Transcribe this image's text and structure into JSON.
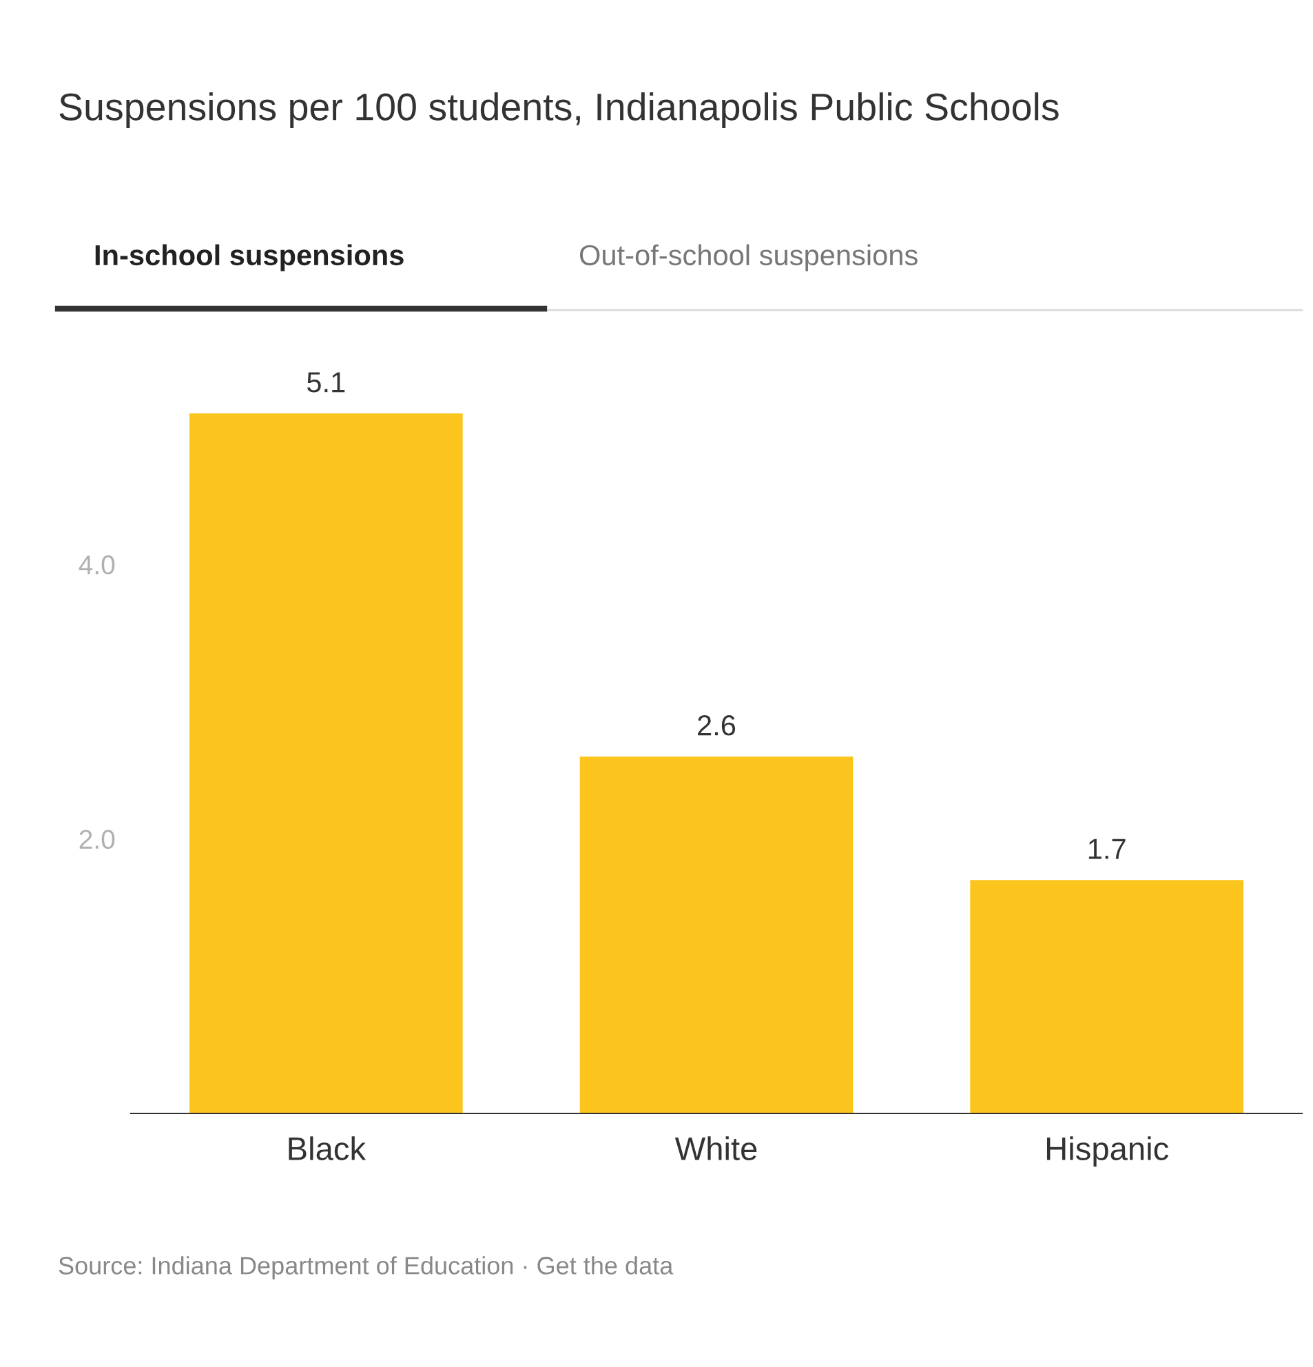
{
  "chart_data": {
    "type": "bar",
    "title": "Suspensions per 100 students, Indianapolis Public Schools",
    "categories": [
      "Black",
      "White",
      "Hispanic"
    ],
    "values": [
      5.1,
      2.6,
      1.7
    ],
    "color": "#fcc51d",
    "ylim": [
      0,
      5.1
    ],
    "yticks": [
      {
        "value": 2,
        "label": "2.0"
      },
      {
        "value": 4,
        "label": "4.0"
      }
    ],
    "grid": false,
    "data_labels": true,
    "annotations": [
      "In-school suspensions",
      "Out-of-school suspensions",
      "Source: Indiana Department of Education · Get the data"
    ]
  }
}
